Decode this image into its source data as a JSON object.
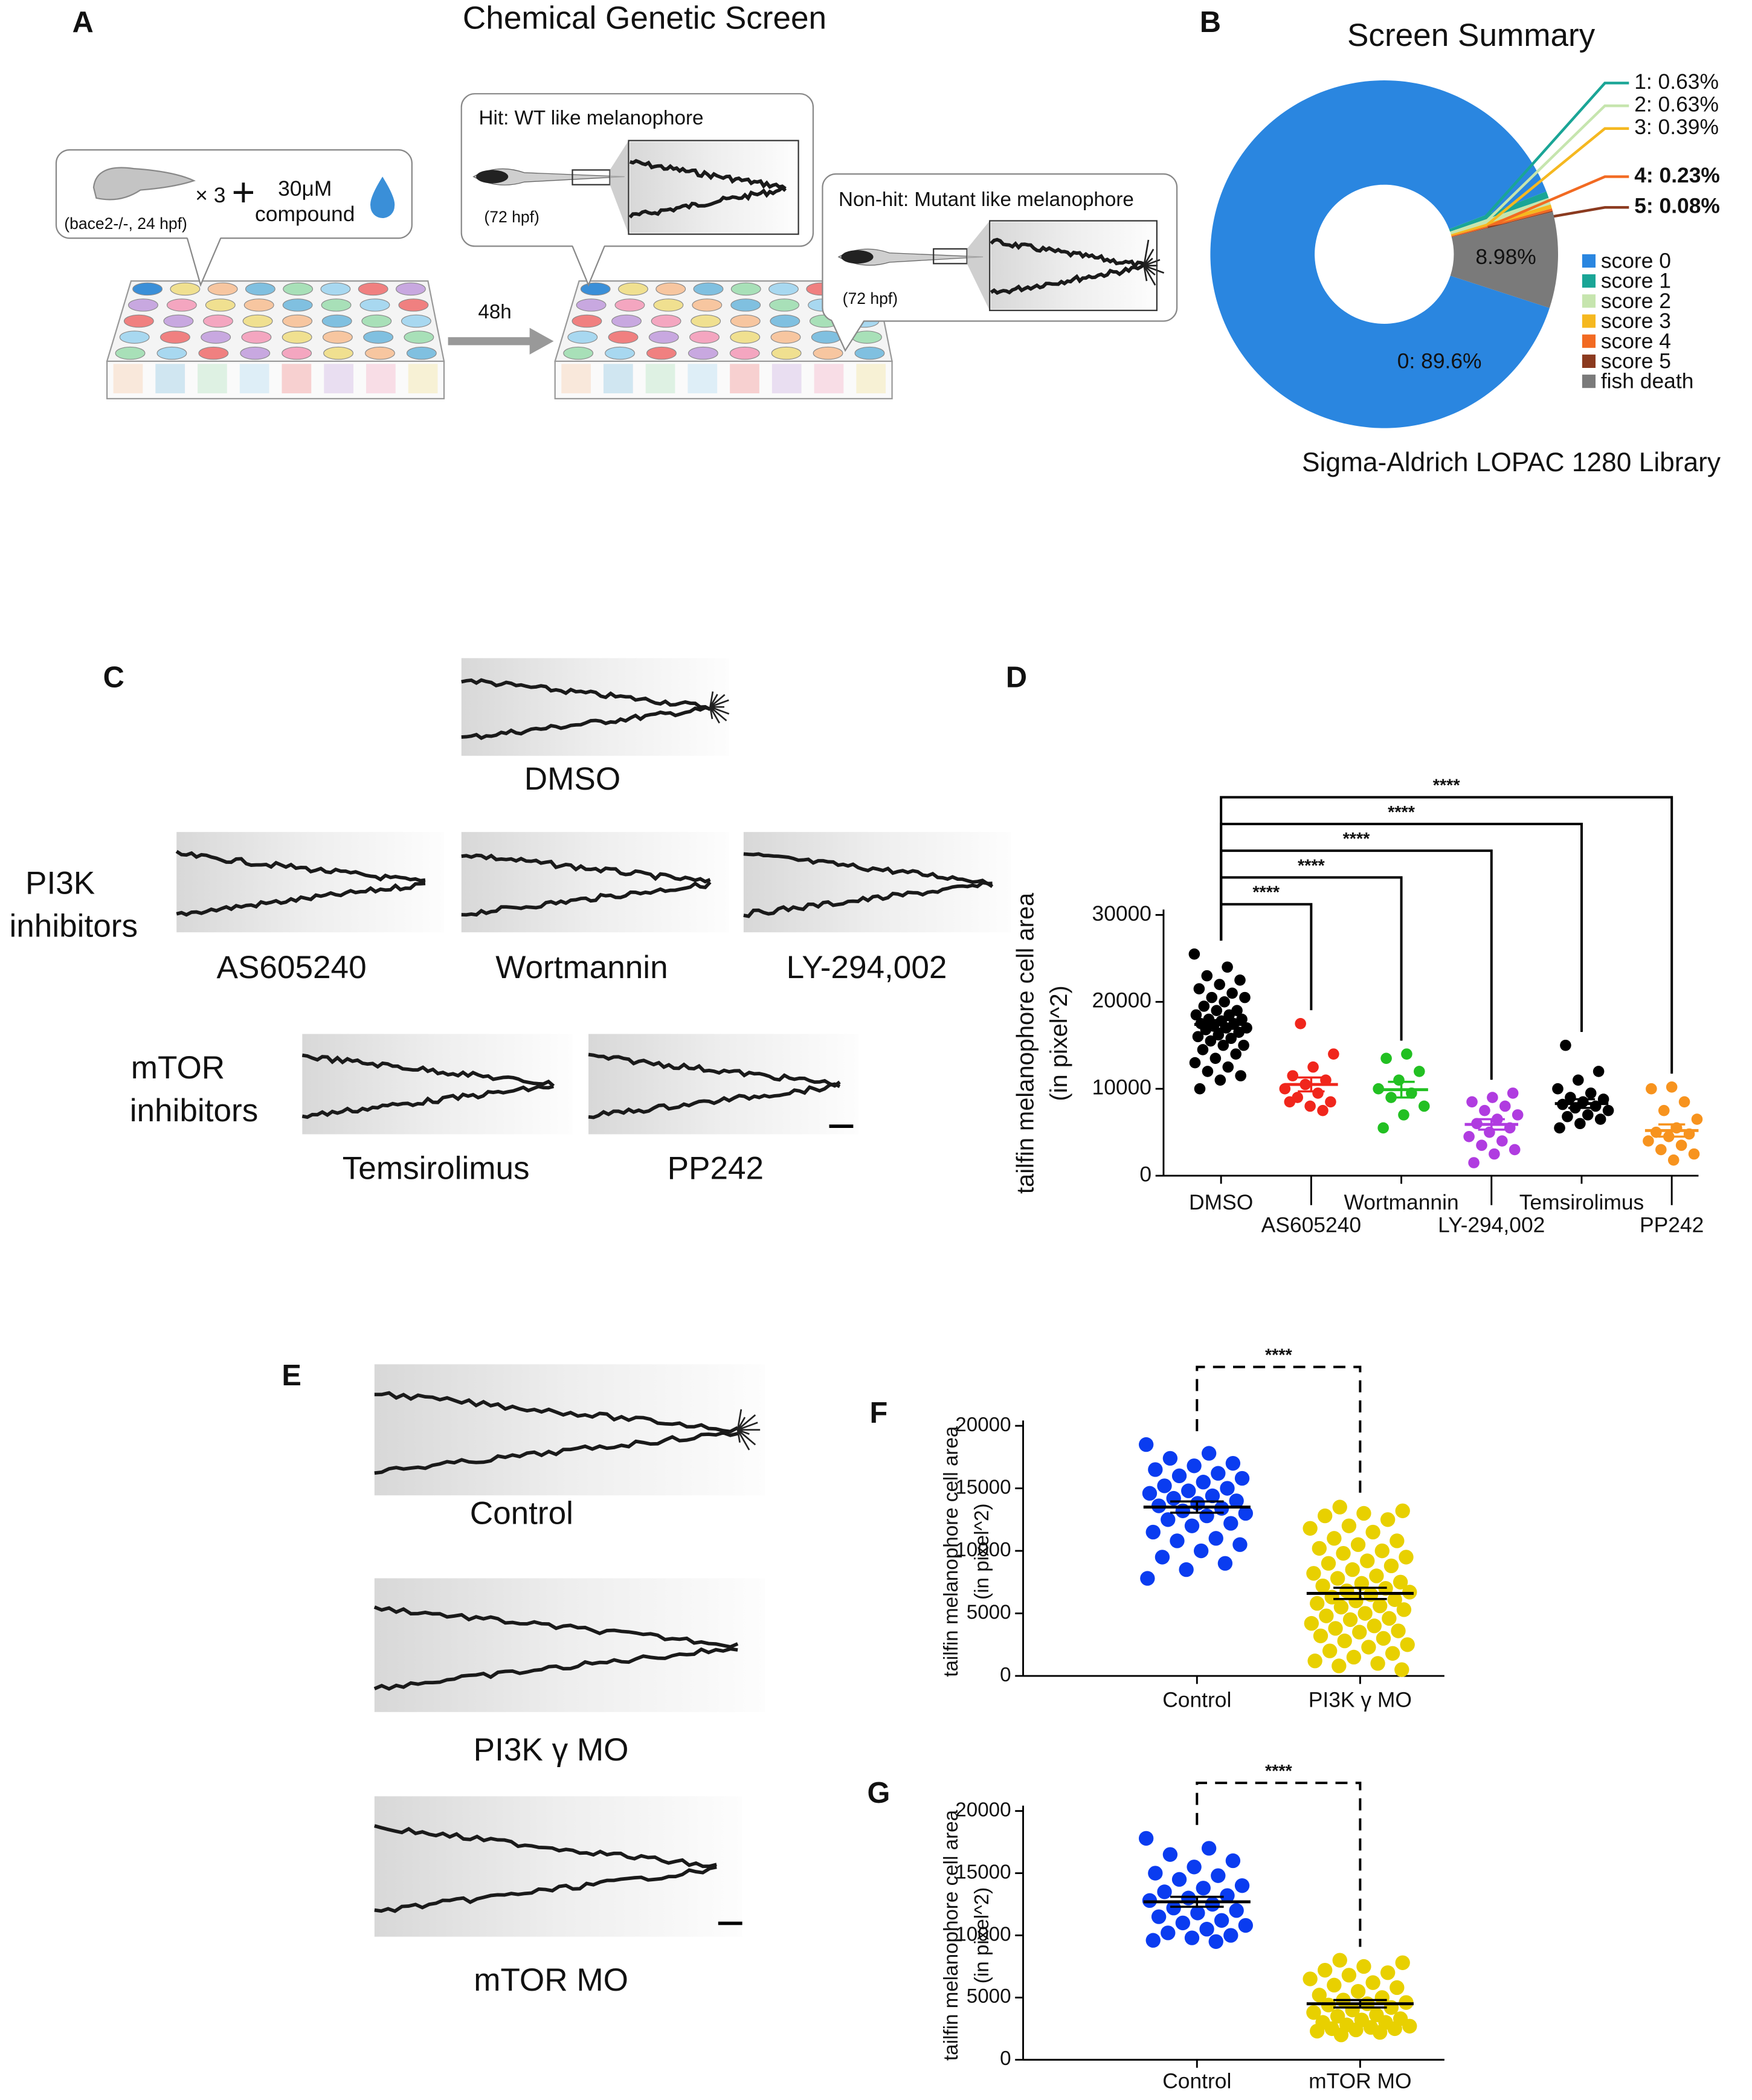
{
  "figure": {
    "panel_a": {
      "label": "A",
      "title": "Chemical Genetic Screen",
      "embryo": "(bace2-/-, 24 hpf)",
      "times": "× 3",
      "plus": "+",
      "dose": "30μM",
      "compound": "compound",
      "interval": "48h",
      "hit": "Hit: WT like melanophore",
      "hit_stage": "(72 hpf)",
      "nonhit": "Non-hit: Mutant like melanophore",
      "nonhit_stage": "(72 hpf)"
    },
    "panel_c": {
      "label": "C",
      "control": "DMSO",
      "group1": [
        "PI3K",
        "inhibitors"
      ],
      "group1_drugs": [
        "AS605240",
        "Wortmannin",
        "LY-294,002"
      ],
      "group2": [
        "mTOR",
        "inhibitors"
      ],
      "group2_drugs": [
        "Temsirolimus",
        "PP242"
      ]
    },
    "panel_e": {
      "label": "E",
      "conditions": [
        "Control",
        "PI3K γ MO",
        "mTOR MO"
      ]
    }
  },
  "chart_data": [
    {
      "type": "pie",
      "label": "B",
      "title": "Screen Summary",
      "caption": "Sigma-Aldrich LOPAC 1280 Library",
      "donut": true,
      "categories": [
        "score 0",
        "score 1",
        "score 2",
        "score 3",
        "score 4",
        "score 5",
        "fish death"
      ],
      "values": [
        89.6,
        0.63,
        0.63,
        0.39,
        0.23,
        0.08,
        8.98
      ],
      "value_labels": [
        "0: 89.6%",
        "1: 0.63%",
        "2: 0.63%",
        "3: 0.39%",
        "4: 0.23%",
        "5: 0.08%",
        "8.98%"
      ],
      "bold": [
        false,
        false,
        false,
        false,
        true,
        true,
        false
      ],
      "colors": [
        "#2a86e0",
        "#1aa596",
        "#c6e5ae",
        "#f5b820",
        "#f26a22",
        "#8b3a1f",
        "#7a7a7a"
      ],
      "legend": "right"
    },
    {
      "type": "strip",
      "label": "D",
      "ylabel": [
        "tailfin melanophore cell area",
        "(in pixel^2)"
      ],
      "categories": [
        "DMSO",
        "AS605240",
        "Wortmannin",
        "LY-294,002",
        "Temsirolimus",
        "PP242"
      ],
      "colors": [
        "#000000",
        "#f0261c",
        "#22c022",
        "#b03ce0",
        "#000000",
        "#f7931e"
      ],
      "values": [
        [
          25500,
          24000,
          23000,
          22500,
          22000,
          21500,
          21000,
          20500,
          20500,
          20000,
          19500,
          19000,
          19000,
          18500,
          18500,
          18000,
          18000,
          17800,
          17500,
          17500,
          17200,
          17000,
          17000,
          16800,
          16500,
          16200,
          16000,
          15800,
          15500,
          15000,
          15000,
          14500,
          14000,
          13500,
          13000,
          12500,
          12000,
          11500,
          11000,
          10000
        ],
        [
          17500,
          14000,
          12500,
          11500,
          11000,
          10500,
          10000,
          9500,
          9000,
          8500,
          8000,
          8500,
          7500
        ],
        [
          14000,
          13500,
          12000,
          11000,
          10000,
          9500,
          9000,
          8000,
          7000,
          5500
        ],
        [
          9500,
          9000,
          8500,
          8000,
          7500,
          7000,
          6500,
          6000,
          5500,
          5000,
          4500,
          4000,
          3500,
          3000,
          2500,
          1500
        ],
        [
          15000,
          12000,
          11000,
          10000,
          9500,
          9000,
          8800,
          8500,
          8200,
          8000,
          7800,
          7500,
          7000,
          6800,
          6500,
          6000,
          5500
        ],
        [
          10200,
          10000,
          8500,
          7500,
          6500,
          5500,
          5000,
          4800,
          4500,
          4000,
          3500,
          3000,
          2500,
          1800
        ]
      ],
      "means": [
        17400,
        10500,
        9900,
        5900,
        8300,
        5200
      ],
      "sems": [
        500,
        800,
        900,
        600,
        500,
        700
      ],
      "significance": [
        null,
        "****",
        "****",
        "****",
        "****",
        "****"
      ],
      "bracket_style": "solid",
      "ylim": [
        0,
        30000
      ],
      "yticks": [
        0,
        10000,
        20000,
        30000
      ]
    },
    {
      "type": "strip",
      "label": "F",
      "ylabel": [
        "tailfin melanophore cell area",
        "(in pixel^2)"
      ],
      "categories": [
        "Control",
        "PI3K γ MO"
      ],
      "colors": [
        "#0a3cf0",
        "#e8d000"
      ],
      "mean_color": "#000000",
      "values": [
        [
          18500,
          17800,
          17400,
          17000,
          16800,
          16500,
          16200,
          16000,
          15800,
          15500,
          15200,
          15000,
          14800,
          14600,
          14400,
          14200,
          14000,
          13800,
          13600,
          13400,
          13200,
          13000,
          12800,
          12500,
          12200,
          12000,
          11500,
          11000,
          10800,
          10500,
          10000,
          9500,
          9000,
          8500,
          7800
        ],
        [
          13500,
          13200,
          13000,
          12800,
          12500,
          12000,
          11800,
          11500,
          11000,
          10800,
          10500,
          10200,
          10000,
          9800,
          9500,
          9200,
          9000,
          8800,
          8500,
          8200,
          8000,
          7800,
          7500,
          7400,
          7200,
          7000,
          6800,
          6700,
          6500,
          6300,
          6100,
          6000,
          5800,
          5600,
          5500,
          5300,
          5000,
          4800,
          4600,
          4500,
          4200,
          4000,
          3800,
          3600,
          3500,
          3200,
          3000,
          2800,
          2500,
          2300,
          2000,
          1800,
          1500,
          1200,
          1000,
          800,
          500
        ]
      ],
      "means": [
        13500,
        6600
      ],
      "sems": [
        450,
        450
      ],
      "significance": [
        null,
        "****"
      ],
      "bracket_style": "dashed",
      "ylim": [
        0,
        20000
      ],
      "yticks": [
        0,
        5000,
        10000,
        15000,
        20000
      ]
    },
    {
      "type": "strip",
      "label": "G",
      "ylabel": [
        "tailfin melanophore cell area",
        "(in pixel^2)"
      ],
      "categories": [
        "Control",
        "mTOR MO"
      ],
      "colors": [
        "#0a3cf0",
        "#e8d000"
      ],
      "mean_color": "#000000",
      "values": [
        [
          17800,
          17000,
          16500,
          16000,
          15500,
          15000,
          14800,
          14500,
          14000,
          13800,
          13500,
          13200,
          13000,
          12800,
          12500,
          12200,
          12000,
          11800,
          11500,
          11200,
          11000,
          10800,
          10500,
          10200,
          10000,
          9800,
          9600,
          9500
        ],
        [
          8000,
          7800,
          7500,
          7200,
          7000,
          6800,
          6500,
          6200,
          6000,
          5800,
          5500,
          5200,
          5000,
          4800,
          4600,
          4500,
          4400,
          4200,
          4000,
          3800,
          3600,
          3500,
          3300,
          3200,
          3000,
          3000,
          2800,
          2700,
          2600,
          2500,
          2500,
          2400,
          2300,
          2200,
          2000
        ]
      ],
      "means": [
        12700,
        4500
      ],
      "sems": [
        400,
        300
      ],
      "significance": [
        null,
        "****"
      ],
      "bracket_style": "dashed",
      "ylim": [
        0,
        20000
      ],
      "yticks": [
        0,
        5000,
        10000,
        15000,
        20000
      ]
    }
  ]
}
